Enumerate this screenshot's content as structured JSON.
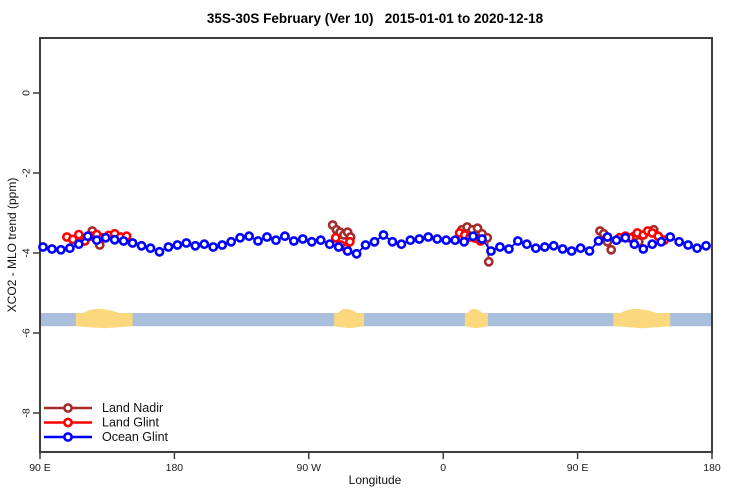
{
  "chart_data": {
    "type": "line-scatter",
    "title": "35S-30S February (Ver 10)   2015-01-01 to 2020-12-18",
    "xlabel": "Longitude",
    "ylabel": "XCO2 - MLO trend (ppm)",
    "xlim": [
      90,
      540
    ],
    "ylim": [
      -8.975,
      1.375
    ],
    "grid": false,
    "x_ticks": [
      {
        "value": 90,
        "label": "90 E"
      },
      {
        "value": 180,
        "label": "180"
      },
      {
        "value": 270,
        "label": "90 W"
      },
      {
        "value": 360,
        "label": "0"
      },
      {
        "value": 450,
        "label": "90 E"
      },
      {
        "value": 540,
        "label": "180"
      }
    ],
    "y_ticks": [
      {
        "value": 0,
        "label": "0"
      },
      {
        "value": -2,
        "label": "-2"
      },
      {
        "value": -4,
        "label": "-4"
      },
      {
        "value": -6,
        "label": "-6"
      },
      {
        "value": -8,
        "label": "-8"
      }
    ],
    "legend": {
      "position": "bottom-left",
      "entries": [
        {
          "label": "Land Nadir",
          "color": "#A52A2A"
        },
        {
          "label": "Land Glint",
          "color": "#FF0000"
        },
        {
          "label": "Ocean Glint",
          "color": "#0000FF"
        }
      ]
    },
    "map_band": {
      "top": -5.5,
      "bottom": -5.83,
      "ocean_color": "#A9BFDB",
      "land_color": "#FBD77E",
      "land_patches": [
        {
          "name": "australia",
          "from": 114,
          "to": 152
        },
        {
          "name": "south-america",
          "from": 287,
          "to": 307
        },
        {
          "name": "south-africa",
          "from": 374.5,
          "to": 390
        },
        {
          "name": "australia-repeat",
          "from": 474,
          "to": 512
        }
      ]
    },
    "series": [
      {
        "name": "Land Nadir",
        "color": "#A52A2A",
        "marker": "open-circle",
        "segments": [
          [
            [
              125,
              -3.45
            ],
            [
              127.5,
              -3.58
            ],
            [
              130,
              -3.8
            ]
          ],
          [
            [
              286,
              -3.3
            ],
            [
              288.5,
              -3.42
            ],
            [
              291,
              -3.48
            ],
            [
              293.5,
              -3.55
            ],
            [
              296,
              -3.48
            ],
            [
              298,
              -3.6
            ]
          ],
          [
            [
              372.5,
              -3.42
            ],
            [
              376,
              -3.35
            ],
            [
              379.5,
              -3.42
            ],
            [
              383,
              -3.38
            ],
            [
              386,
              -3.52
            ],
            [
              389.5,
              -3.62
            ],
            [
              390.5,
              -4.22
            ]
          ],
          [
            [
              465,
              -3.45
            ],
            [
              467.5,
              -3.52
            ],
            [
              470,
              -3.72
            ],
            [
              472.5,
              -3.92
            ]
          ],
          [
            [
              488,
              -3.58
            ],
            [
              491,
              -3.72
            ]
          ],
          [
            [
              501,
              -3.42
            ]
          ]
        ]
      },
      {
        "name": "Land Glint",
        "color": "#FF0000",
        "marker": "open-circle",
        "segments": [
          [
            [
              108,
              -3.6
            ],
            [
              112,
              -3.66
            ],
            [
              116,
              -3.54
            ],
            [
              120,
              -3.7
            ],
            [
              124,
              -3.58
            ],
            [
              128,
              -3.54
            ],
            [
              132,
              -3.62
            ],
            [
              136,
              -3.56
            ],
            [
              140,
              -3.52
            ],
            [
              144,
              -3.6
            ],
            [
              148,
              -3.58
            ]
          ],
          [
            [
              288,
              -3.62
            ],
            [
              291.5,
              -3.8
            ],
            [
              295,
              -3.88
            ],
            [
              297.5,
              -3.72
            ]
          ],
          [
            [
              371,
              -3.5
            ],
            [
              374.5,
              -3.55
            ],
            [
              378,
              -3.6
            ],
            [
              381.5,
              -3.63
            ],
            [
              385,
              -3.7
            ]
          ],
          [
            [
              478,
              -3.62
            ],
            [
              482,
              -3.58
            ],
            [
              485,
              -3.62
            ],
            [
              490,
              -3.5
            ],
            [
              494,
              -3.55
            ],
            [
              497,
              -3.45
            ],
            [
              500,
              -3.5
            ],
            [
              504,
              -3.58
            ],
            [
              508,
              -3.68
            ]
          ]
        ]
      },
      {
        "name": "Ocean Glint",
        "color": "#0000FF",
        "marker": "open-circle",
        "segments": [
          [
            [
              92,
              -3.85
            ],
            [
              98,
              -3.9
            ],
            [
              104,
              -3.92
            ],
            [
              110,
              -3.88
            ],
            [
              116,
              -3.78
            ],
            [
              122,
              -3.58
            ],
            [
              128,
              -3.68
            ],
            [
              134,
              -3.62
            ],
            [
              140,
              -3.67
            ],
            [
              146,
              -3.7
            ],
            [
              152,
              -3.75
            ],
            [
              158,
              -3.82
            ],
            [
              164,
              -3.88
            ],
            [
              170,
              -3.97
            ],
            [
              176,
              -3.85
            ],
            [
              182,
              -3.8
            ],
            [
              188,
              -3.75
            ],
            [
              194,
              -3.82
            ],
            [
              200,
              -3.78
            ],
            [
              206,
              -3.85
            ],
            [
              212,
              -3.8
            ],
            [
              218,
              -3.72
            ],
            [
              224,
              -3.62
            ],
            [
              230,
              -3.58
            ],
            [
              236,
              -3.7
            ],
            [
              242,
              -3.6
            ],
            [
              248,
              -3.68
            ],
            [
              254,
              -3.58
            ],
            [
              260,
              -3.7
            ],
            [
              266,
              -3.65
            ],
            [
              272,
              -3.72
            ],
            [
              278,
              -3.68
            ],
            [
              284,
              -3.78
            ],
            [
              290,
              -3.85
            ],
            [
              296,
              -3.95
            ],
            [
              302,
              -4.02
            ],
            [
              308,
              -3.8
            ],
            [
              314,
              -3.72
            ],
            [
              320,
              -3.55
            ],
            [
              326,
              -3.72
            ],
            [
              332,
              -3.78
            ],
            [
              338,
              -3.68
            ],
            [
              344,
              -3.65
            ],
            [
              350,
              -3.6
            ],
            [
              356,
              -3.65
            ],
            [
              362,
              -3.68
            ],
            [
              368,
              -3.68
            ],
            [
              374,
              -3.72
            ],
            [
              380,
              -3.58
            ],
            [
              386,
              -3.65
            ],
            [
              392,
              -3.95
            ],
            [
              398,
              -3.85
            ],
            [
              404,
              -3.9
            ],
            [
              410,
              -3.7
            ],
            [
              416,
              -3.78
            ],
            [
              422,
              -3.88
            ],
            [
              428,
              -3.85
            ],
            [
              434,
              -3.82
            ],
            [
              440,
              -3.9
            ],
            [
              446,
              -3.95
            ],
            [
              452,
              -3.88
            ],
            [
              458,
              -3.95
            ],
            [
              464,
              -3.7
            ],
            [
              470,
              -3.6
            ],
            [
              476,
              -3.68
            ],
            [
              482,
              -3.62
            ],
            [
              488,
              -3.78
            ],
            [
              494,
              -3.9
            ],
            [
              500,
              -3.78
            ],
            [
              506,
              -3.72
            ],
            [
              512,
              -3.6
            ],
            [
              518,
              -3.72
            ],
            [
              524,
              -3.8
            ],
            [
              530,
              -3.88
            ],
            [
              536,
              -3.82
            ]
          ]
        ]
      }
    ]
  }
}
